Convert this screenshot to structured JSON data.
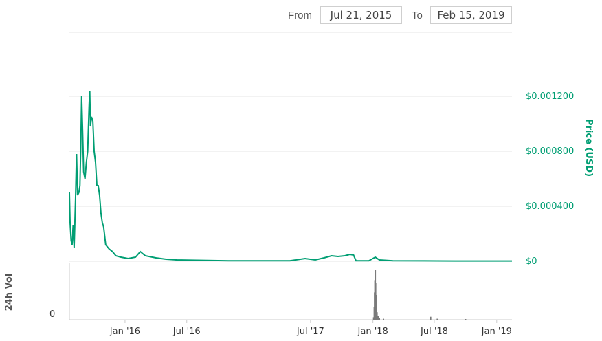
{
  "range_selector": {
    "from_label": "From",
    "from_value": "Jul 21, 2015",
    "to_label": "To",
    "to_value": "Feb 15, 2019"
  },
  "colors": {
    "price_line": "#009e73",
    "volume_bars": "#7a7a7a",
    "grid": "#e6e6e6"
  },
  "chart_data": {
    "type": "line",
    "x_range": [
      "2015-07-21",
      "2019-02-15"
    ],
    "x_ticks": [
      "Jan '16",
      "Jul '16",
      "Jul '17",
      "Jan '18",
      "Jul '18",
      "Jan '19"
    ],
    "price": {
      "axis_title": "Price (USD)",
      "y_ticks": [
        "$0",
        "$0.000400",
        "$0.000800",
        "$0.001200"
      ],
      "ylim": [
        0,
        0.00125
      ],
      "grid": true,
      "points": [
        [
          "2015-07-21",
          0.0005
        ],
        [
          "2015-07-23",
          0.00028
        ],
        [
          "2015-07-26",
          0.00015
        ],
        [
          "2015-07-29",
          0.00012
        ],
        [
          "2015-08-01",
          0.00026
        ],
        [
          "2015-08-04",
          0.0001
        ],
        [
          "2015-08-08",
          0.00045
        ],
        [
          "2015-08-11",
          0.00078
        ],
        [
          "2015-08-14",
          0.00048
        ],
        [
          "2015-08-18",
          0.0005
        ],
        [
          "2015-08-21",
          0.00055
        ],
        [
          "2015-08-24",
          0.0009
        ],
        [
          "2015-08-26",
          0.0012
        ],
        [
          "2015-08-29",
          0.00095
        ],
        [
          "2015-09-01",
          0.00065
        ],
        [
          "2015-09-05",
          0.0006
        ],
        [
          "2015-09-09",
          0.00072
        ],
        [
          "2015-09-13",
          0.0008
        ],
        [
          "2015-09-17",
          0.00112
        ],
        [
          "2015-09-19",
          0.00124
        ],
        [
          "2015-09-21",
          0.00098
        ],
        [
          "2015-09-24",
          0.00105
        ],
        [
          "2015-09-28",
          0.00102
        ],
        [
          "2015-10-02",
          0.0008
        ],
        [
          "2015-10-06",
          0.00072
        ],
        [
          "2015-10-10",
          0.00055
        ],
        [
          "2015-10-14",
          0.00055
        ],
        [
          "2015-10-18",
          0.00048
        ],
        [
          "2015-10-22",
          0.00035
        ],
        [
          "2015-10-26",
          0.00028
        ],
        [
          "2015-10-30",
          0.00025
        ],
        [
          "2015-11-05",
          0.00012
        ],
        [
          "2015-11-15",
          9e-05
        ],
        [
          "2015-11-25",
          7e-05
        ],
        [
          "2015-12-05",
          4e-05
        ],
        [
          "2015-12-20",
          3e-05
        ],
        [
          "2016-01-10",
          2e-05
        ],
        [
          "2016-02-01",
          3e-05
        ],
        [
          "2016-02-15",
          7e-05
        ],
        [
          "2016-03-01",
          4e-05
        ],
        [
          "2016-04-01",
          2.5e-05
        ],
        [
          "2016-05-01",
          1.5e-05
        ],
        [
          "2016-06-01",
          1e-05
        ],
        [
          "2016-07-15",
          8e-06
        ],
        [
          "2016-09-01",
          6e-06
        ],
        [
          "2016-11-01",
          4e-06
        ],
        [
          "2017-01-01",
          4e-06
        ],
        [
          "2017-03-01",
          4e-06
        ],
        [
          "2017-05-01",
          4e-06
        ],
        [
          "2017-06-15",
          2e-05
        ],
        [
          "2017-07-15",
          1e-05
        ],
        [
          "2017-08-10",
          2.5e-05
        ],
        [
          "2017-09-01",
          4e-05
        ],
        [
          "2017-09-20",
          3.5e-05
        ],
        [
          "2017-10-10",
          4e-05
        ],
        [
          "2017-10-25",
          5e-05
        ],
        [
          "2017-11-05",
          4.5e-05
        ],
        [
          "2017-11-12",
          4e-06
        ],
        [
          "2017-12-20",
          4e-06
        ],
        [
          "2018-01-08",
          3e-05
        ],
        [
          "2018-01-20",
          1e-05
        ],
        [
          "2018-03-01",
          4e-06
        ],
        [
          "2018-06-01",
          3e-06
        ],
        [
          "2018-09-01",
          2e-06
        ],
        [
          "2018-12-01",
          2e-06
        ],
        [
          "2019-02-15",
          2e-06
        ]
      ]
    },
    "volume": {
      "axis_title": "24h Vol",
      "y_ticks": [
        "0"
      ],
      "relative_bars": [
        [
          "2018-01-03",
          0.05
        ],
        [
          "2018-01-05",
          0.25
        ],
        [
          "2018-01-06",
          0.55
        ],
        [
          "2018-01-07",
          0.8
        ],
        [
          "2018-01-08",
          1.0
        ],
        [
          "2018-01-09",
          0.75
        ],
        [
          "2018-01-10",
          0.5
        ],
        [
          "2018-01-11",
          0.3
        ],
        [
          "2018-01-13",
          0.15
        ],
        [
          "2018-01-16",
          0.08
        ],
        [
          "2018-01-20",
          0.04
        ],
        [
          "2018-02-01",
          0.02
        ],
        [
          "2018-06-20",
          0.06
        ],
        [
          "2018-07-10",
          0.02
        ],
        [
          "2018-10-01",
          0.01
        ]
      ]
    }
  }
}
